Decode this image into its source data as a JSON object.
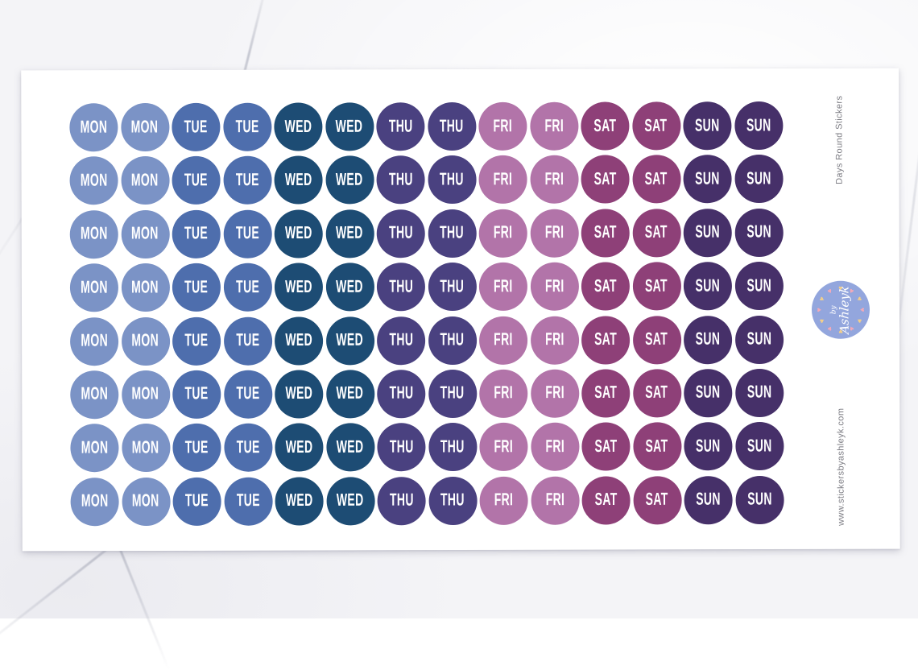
{
  "product": {
    "title_vertical": "Days Round Stickers",
    "website_vertical": "www.stickersbyashleyk.com"
  },
  "logo": {
    "by_label": "by",
    "name_label": "Ashleyk",
    "bg_color": "#93a6dd",
    "heart_colors": [
      "#f3cf8a",
      "#f2a9b8"
    ],
    "hearts_count": 12,
    "heart_icon": "♥"
  },
  "sticker_sheet": {
    "rows": 8,
    "columns_pattern": [
      "MON",
      "MON",
      "TUE",
      "TUE",
      "WED",
      "WED",
      "THU",
      "THU",
      "FRI",
      "FRI",
      "SAT",
      "SAT",
      "SUN",
      "SUN"
    ],
    "day_colors": {
      "MON": "#7b93c6",
      "TUE": "#4e6ead",
      "WED": "#1d4c74",
      "THU": "#4a4180",
      "FRI": "#b274a9",
      "SAT": "#8e4078",
      "SUN": "#463069"
    },
    "label_color": "#ffffff"
  }
}
